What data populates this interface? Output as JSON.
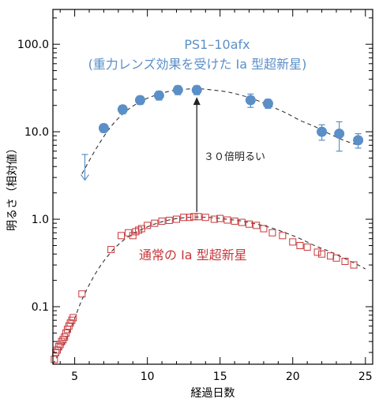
{
  "chart_data": {
    "type": "scatter",
    "title": "",
    "xlabel": "経過日数",
    "ylabel": "明るさ（相対値）",
    "xlim": [
      3.5,
      25.5
    ],
    "ylim": [
      0.022,
      250
    ],
    "yscale": "log",
    "xticks": [
      5,
      10,
      15,
      20,
      25
    ],
    "xtick_labels": [
      "5",
      "10",
      "15",
      "20",
      "25"
    ],
    "yticks": [
      0.1,
      1.0,
      10.0,
      100.0
    ],
    "ytick_labels": [
      "0.1",
      "1.0",
      "10.0",
      "100.0"
    ],
    "grid": false,
    "legend": "none",
    "colors": {
      "lensed": "#5b8fc7",
      "normal": "#c8373a",
      "fit": "#333333",
      "arrow": "#222222"
    },
    "series": [
      {
        "name": "PS1-10afx（重力レンズ効果を受けたIa型超新星）",
        "marker": "circle",
        "x": [
          7.0,
          8.3,
          9.5,
          10.8,
          12.1,
          13.4,
          17.1,
          18.3,
          22.0,
          23.2,
          24.5
        ],
        "y": [
          11.0,
          18.0,
          23.0,
          26.0,
          30.0,
          30.0,
          23.0,
          21.0,
          10.0,
          9.5,
          8.0
        ],
        "yerr": [
          1.2,
          2.0,
          2.5,
          3.0,
          3.5,
          3.5,
          4.0,
          2.5,
          2.0,
          3.5,
          1.5
        ]
      },
      {
        "name": "通常のIa型超新星",
        "marker": "open-square",
        "x": [
          3.6,
          3.7,
          3.8,
          3.9,
          4.0,
          4.1,
          4.2,
          4.3,
          4.4,
          4.5,
          4.6,
          4.7,
          4.8,
          4.9,
          5.5,
          7.5,
          8.2,
          8.7,
          9.0,
          9.2,
          9.4,
          9.6,
          10.0,
          10.5,
          11.0,
          11.5,
          12.0,
          12.5,
          12.9,
          13.2,
          13.5,
          14.0,
          14.6,
          15.0,
          15.5,
          16.0,
          16.5,
          17.0,
          17.5,
          18.0,
          18.6,
          19.3,
          20.0,
          20.5,
          21.0,
          21.7,
          22.0,
          22.6,
          23.0,
          23.6,
          24.2
        ],
        "y": [
          0.025,
          0.03,
          0.032,
          0.035,
          0.037,
          0.04,
          0.042,
          0.045,
          0.05,
          0.055,
          0.06,
          0.065,
          0.07,
          0.075,
          0.14,
          0.45,
          0.65,
          0.7,
          0.65,
          0.72,
          0.75,
          0.78,
          0.85,
          0.9,
          0.95,
          0.97,
          1.0,
          1.05,
          1.05,
          1.07,
          1.07,
          1.05,
          1.0,
          1.02,
          0.98,
          0.95,
          0.92,
          0.88,
          0.85,
          0.78,
          0.7,
          0.65,
          0.55,
          0.5,
          0.48,
          0.42,
          0.4,
          0.38,
          0.36,
          0.33,
          0.3
        ]
      }
    ],
    "fit_lines": [
      {
        "series": "PS1-10afx",
        "x": [
          5.5,
          6.5,
          7.5,
          8.5,
          9.5,
          10.5,
          11.5,
          12.5,
          13.5,
          14.5,
          15.5,
          16.5,
          17.5,
          18.5,
          19.5,
          20.5,
          21.5,
          22.5,
          23.5,
          24.5
        ],
        "y": [
          3.3,
          6.5,
          11.5,
          17.0,
          22.0,
          26.0,
          29.0,
          30.5,
          31.0,
          30.0,
          28.5,
          26.0,
          23.0,
          19.5,
          16.5,
          13.5,
          11.5,
          9.5,
          8.0,
          7.0
        ]
      },
      {
        "series": "通常のIa型超新星",
        "x": [
          3.5,
          4.5,
          5.5,
          6.5,
          7.5,
          8.5,
          9.5,
          10.5,
          11.5,
          12.5,
          13.5,
          14.5,
          15.5,
          16.5,
          17.5,
          18.5,
          19.5,
          20.5,
          21.5,
          22.5,
          23.5,
          24.5,
          25.0
        ],
        "y": [
          0.022,
          0.045,
          0.12,
          0.25,
          0.42,
          0.6,
          0.75,
          0.88,
          0.98,
          1.04,
          1.06,
          1.04,
          1.0,
          0.95,
          0.88,
          0.8,
          0.7,
          0.6,
          0.5,
          0.43,
          0.36,
          0.3,
          0.27
        ]
      }
    ],
    "upper_limit": {
      "x": 5.7,
      "y_top": 5.5,
      "y_bottom": 2.8
    },
    "annotations": {
      "lensed_title_line1": "PS1–10afx",
      "lensed_title_line2": "(重力レンズ効果を受けた Ia 型超新星)",
      "normal_label": "通常の Ia 型超新星",
      "arrow_label": "３０倍明るい",
      "arrow": {
        "x": 13.4,
        "y_from": 1.07,
        "y_to": 30.0
      }
    }
  }
}
